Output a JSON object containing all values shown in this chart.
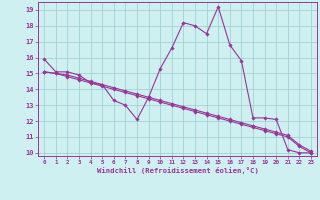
{
  "title": "",
  "xlabel": "Windchill (Refroidissement éolien,°C)",
  "background_color": "#cff0f0",
  "line_color": "#993399",
  "grid_color": "#99cccc",
  "xlim": [
    -0.5,
    23.5
  ],
  "ylim": [
    9.8,
    19.5
  ],
  "yticks": [
    10,
    11,
    12,
    13,
    14,
    15,
    16,
    17,
    18,
    19
  ],
  "xticks": [
    0,
    1,
    2,
    3,
    4,
    5,
    6,
    7,
    8,
    9,
    10,
    11,
    12,
    13,
    14,
    15,
    16,
    17,
    18,
    19,
    20,
    21,
    22,
    23
  ],
  "series": [
    {
      "x": [
        0,
        1,
        2,
        3,
        4,
        5,
        6,
        7,
        8,
        9,
        10,
        11,
        12,
        13,
        14,
        15,
        16,
        17,
        18,
        19,
        20,
        21,
        22,
        23
      ],
      "y": [
        15.9,
        15.1,
        15.1,
        14.9,
        14.4,
        14.3,
        13.3,
        13.0,
        12.1,
        13.5,
        15.3,
        16.6,
        18.2,
        18.0,
        17.5,
        19.2,
        16.8,
        15.8,
        12.2,
        12.2,
        12.1,
        10.2,
        10.0,
        10.0
      ]
    },
    {
      "x": [
        0,
        1,
        2,
        3,
        4,
        5,
        6,
        7,
        8,
        9,
        10,
        11,
        12,
        13,
        14,
        15,
        16,
        17,
        18,
        19,
        20,
        21,
        22,
        23
      ],
      "y": [
        15.1,
        15.0,
        14.9,
        14.7,
        14.5,
        14.3,
        14.1,
        13.9,
        13.7,
        13.5,
        13.3,
        13.1,
        12.9,
        12.7,
        12.5,
        12.3,
        12.1,
        11.9,
        11.7,
        11.5,
        11.3,
        11.1,
        10.5,
        10.1
      ]
    },
    {
      "x": [
        0,
        1,
        2,
        3,
        4,
        5,
        6,
        7,
        8,
        9,
        10,
        11,
        12,
        13,
        14,
        15,
        16,
        17,
        18,
        19,
        20,
        21,
        22,
        23
      ],
      "y": [
        15.1,
        15.0,
        14.8,
        14.6,
        14.4,
        14.2,
        14.0,
        13.8,
        13.6,
        13.4,
        13.2,
        13.0,
        12.8,
        12.6,
        12.4,
        12.2,
        12.0,
        11.8,
        11.6,
        11.4,
        11.2,
        11.0,
        10.4,
        10.0
      ]
    }
  ]
}
